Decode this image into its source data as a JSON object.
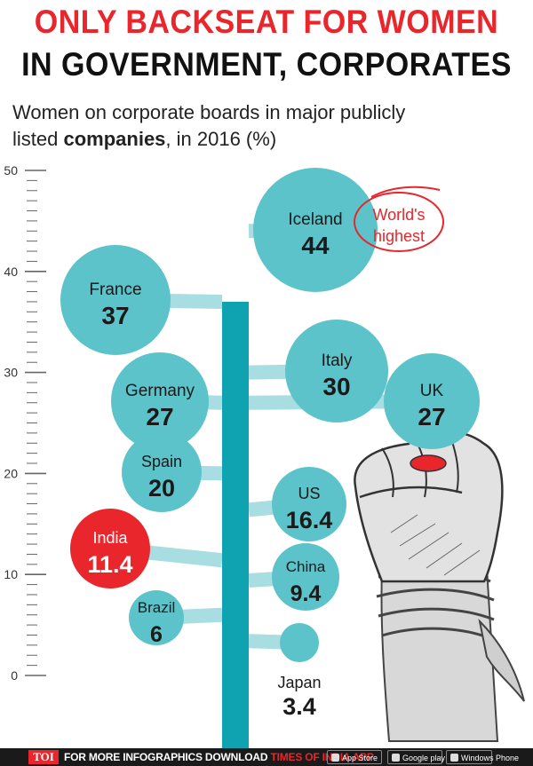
{
  "title_line1": "ONLY BACKSEAT FOR WOMEN",
  "title_line2": "IN GOVERNMENT, CORPORATES",
  "subtitle_part1": "Women on corporate boards in major publicly listed ",
  "subtitle_bold": "companies",
  "subtitle_part2": ", in 2016 (%)",
  "annotation": "World's highest",
  "footer": {
    "logo": "TOI",
    "text": "FOR MORE INFOGRAPHICS DOWNLOAD",
    "brand": "TIMES OF INDIA APP",
    "stores": [
      "App Store",
      "Google play",
      "Windows Phone"
    ]
  },
  "colors": {
    "title_red": "#e8262c",
    "bubble": "#5bc3c9",
    "branch": "#a8dde1",
    "trunk": "#0fa3b1",
    "highlight": "#e8262c"
  },
  "chart_data": {
    "type": "scatter",
    "title": "Women on corporate boards in major publicly listed companies, in 2016 (%)",
    "y_axis": {
      "min": 0,
      "max": 50,
      "ticks": [
        0,
        10,
        20,
        30,
        40,
        50
      ],
      "minor_step": 1
    },
    "points": [
      {
        "country": "Iceland",
        "value": 44,
        "value_label": "44",
        "side": "right"
      },
      {
        "country": "France",
        "value": 37,
        "value_label": "37",
        "side": "left"
      },
      {
        "country": "Italy",
        "value": 30,
        "value_label": "30",
        "side": "right"
      },
      {
        "country": "Germany",
        "value": 27,
        "value_label": "27",
        "side": "left"
      },
      {
        "country": "UK",
        "value": 27,
        "value_label": "27",
        "side": "right"
      },
      {
        "country": "Spain",
        "value": 20,
        "value_label": "20",
        "side": "left"
      },
      {
        "country": "US",
        "value": 16.4,
        "value_label": "16.4",
        "side": "right"
      },
      {
        "country": "India",
        "value": 11.4,
        "value_label": "11.4",
        "side": "left",
        "highlight": true
      },
      {
        "country": "China",
        "value": 9.4,
        "value_label": "9.4",
        "side": "right"
      },
      {
        "country": "Brazil",
        "value": 6,
        "value_label": "6",
        "side": "left"
      },
      {
        "country": "Japan",
        "value": 3.4,
        "value_label": "3.4",
        "side": "right"
      }
    ]
  }
}
